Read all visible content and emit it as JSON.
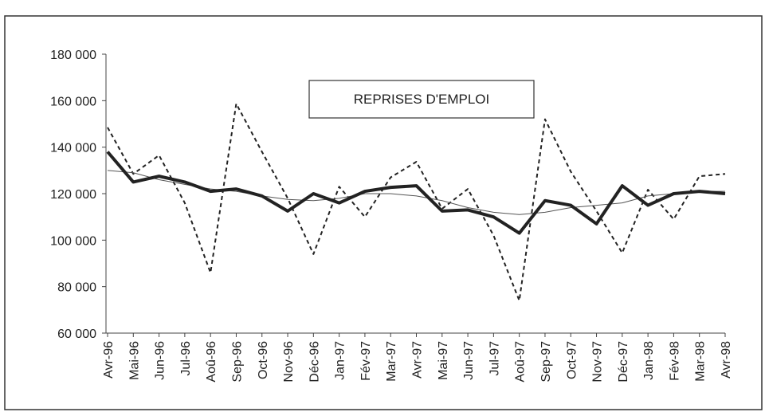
{
  "chart_data": {
    "type": "line",
    "title": "REPRISES D'EMPLOI",
    "categories": [
      "Avr-96",
      "Mai-96",
      "Jun-96",
      "Jul-96",
      "Aoû-96",
      "Sep-96",
      "Oct-96",
      "Nov-96",
      "Déc-96",
      "Jan-97",
      "Fév-97",
      "Mar-97",
      "Avr-97",
      "Mai-97",
      "Jun-97",
      "Jul-97",
      "Aoû-97",
      "Sep-97",
      "Oct-97",
      "Nov-97",
      "Déc-97",
      "Jan-98",
      "Fév-98",
      "Mar-98",
      "Avr-98"
    ],
    "series": [
      {
        "color": "#222",
        "style": "dashed",
        "values": [
          148500,
          128500,
          136500,
          116000,
          86000,
          158700,
          138000,
          118000,
          94000,
          123000,
          110000,
          127000,
          133700,
          113500,
          122000,
          102000,
          74000,
          152000,
          129500,
          112500,
          94500,
          121700,
          109000,
          127500,
          128500
        ]
      },
      {
        "color": "#555",
        "style": "thin",
        "values": [
          130000,
          129000,
          126000,
          124000,
          122000,
          121000,
          119000,
          117500,
          117000,
          118000,
          120000,
          120000,
          119000,
          117000,
          114000,
          112000,
          111000,
          112000,
          114000,
          115000,
          116000,
          119000,
          120000,
          121000,
          121000
        ]
      },
      {
        "color": "#222",
        "style": "thick",
        "values": [
          138000,
          125000,
          127500,
          125000,
          121000,
          122000,
          119000,
          112500,
          120000,
          116000,
          121000,
          122700,
          123400,
          112500,
          113000,
          110000,
          103000,
          117000,
          115000,
          107000,
          123400,
          115000,
          120000,
          121000,
          120000
        ]
      }
    ],
    "ylim": [
      60000,
      180000
    ],
    "yticks": [
      {
        "value": 60000,
        "label": "60 000"
      },
      {
        "value": 80000,
        "label": "80 000"
      },
      {
        "value": 100000,
        "label": "100 000"
      },
      {
        "value": 120000,
        "label": "120 000"
      },
      {
        "value": 140000,
        "label": "140 000"
      },
      {
        "value": 160000,
        "label": "160 000"
      },
      {
        "value": 180000,
        "label": "180 000"
      }
    ],
    "grid": false
  }
}
